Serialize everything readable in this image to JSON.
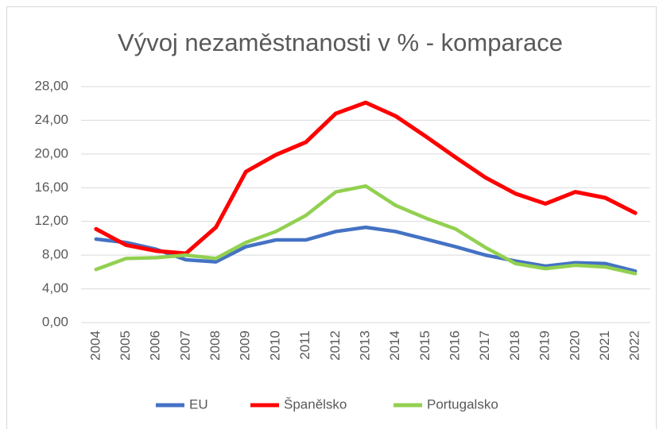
{
  "chart_data": {
    "type": "line",
    "title": "Vývoj nezaměstnanosti v % - komparace",
    "categories": [
      "2004",
      "2005",
      "2006",
      "2007",
      "2008",
      "2009",
      "2010",
      "2011",
      "2012",
      "2013",
      "2014",
      "2015",
      "2016",
      "2017",
      "2018",
      "2019",
      "2020",
      "2021",
      "2022"
    ],
    "series": [
      {
        "name": "EU",
        "color": "#4472c4",
        "values": [
          9.9,
          9.5,
          8.7,
          7.45,
          7.2,
          9.0,
          9.8,
          9.8,
          10.8,
          11.3,
          10.8,
          9.9,
          9.0,
          8.0,
          7.3,
          6.7,
          7.1,
          7.0,
          6.1
        ]
      },
      {
        "name": "Španělsko",
        "color": "#ff0000",
        "values": [
          11.1,
          9.2,
          8.5,
          8.2,
          11.3,
          17.9,
          19.9,
          21.4,
          24.8,
          26.1,
          24.5,
          22.1,
          19.6,
          17.2,
          15.3,
          14.1,
          15.5,
          14.8,
          13.0
        ]
      },
      {
        "name": "Portugalsko",
        "color": "#92d050",
        "values": [
          6.3,
          7.6,
          7.7,
          8.0,
          7.6,
          9.5,
          10.8,
          12.7,
          15.5,
          16.2,
          13.9,
          12.4,
          11.1,
          8.9,
          7.0,
          6.4,
          6.8,
          6.6,
          5.8
        ]
      }
    ],
    "ylim": [
      0,
      28
    ],
    "yticks": [
      {
        "value": 0,
        "label": "0,00"
      },
      {
        "value": 4,
        "label": "4,00"
      },
      {
        "value": 8,
        "label": "8,00"
      },
      {
        "value": 12,
        "label": "12,00"
      },
      {
        "value": 16,
        "label": "16,00"
      },
      {
        "value": 20,
        "label": "20,00"
      },
      {
        "value": 24,
        "label": "24,00"
      },
      {
        "value": 28,
        "label": "28,00"
      }
    ],
    "grid": true,
    "legend": "bottom"
  }
}
